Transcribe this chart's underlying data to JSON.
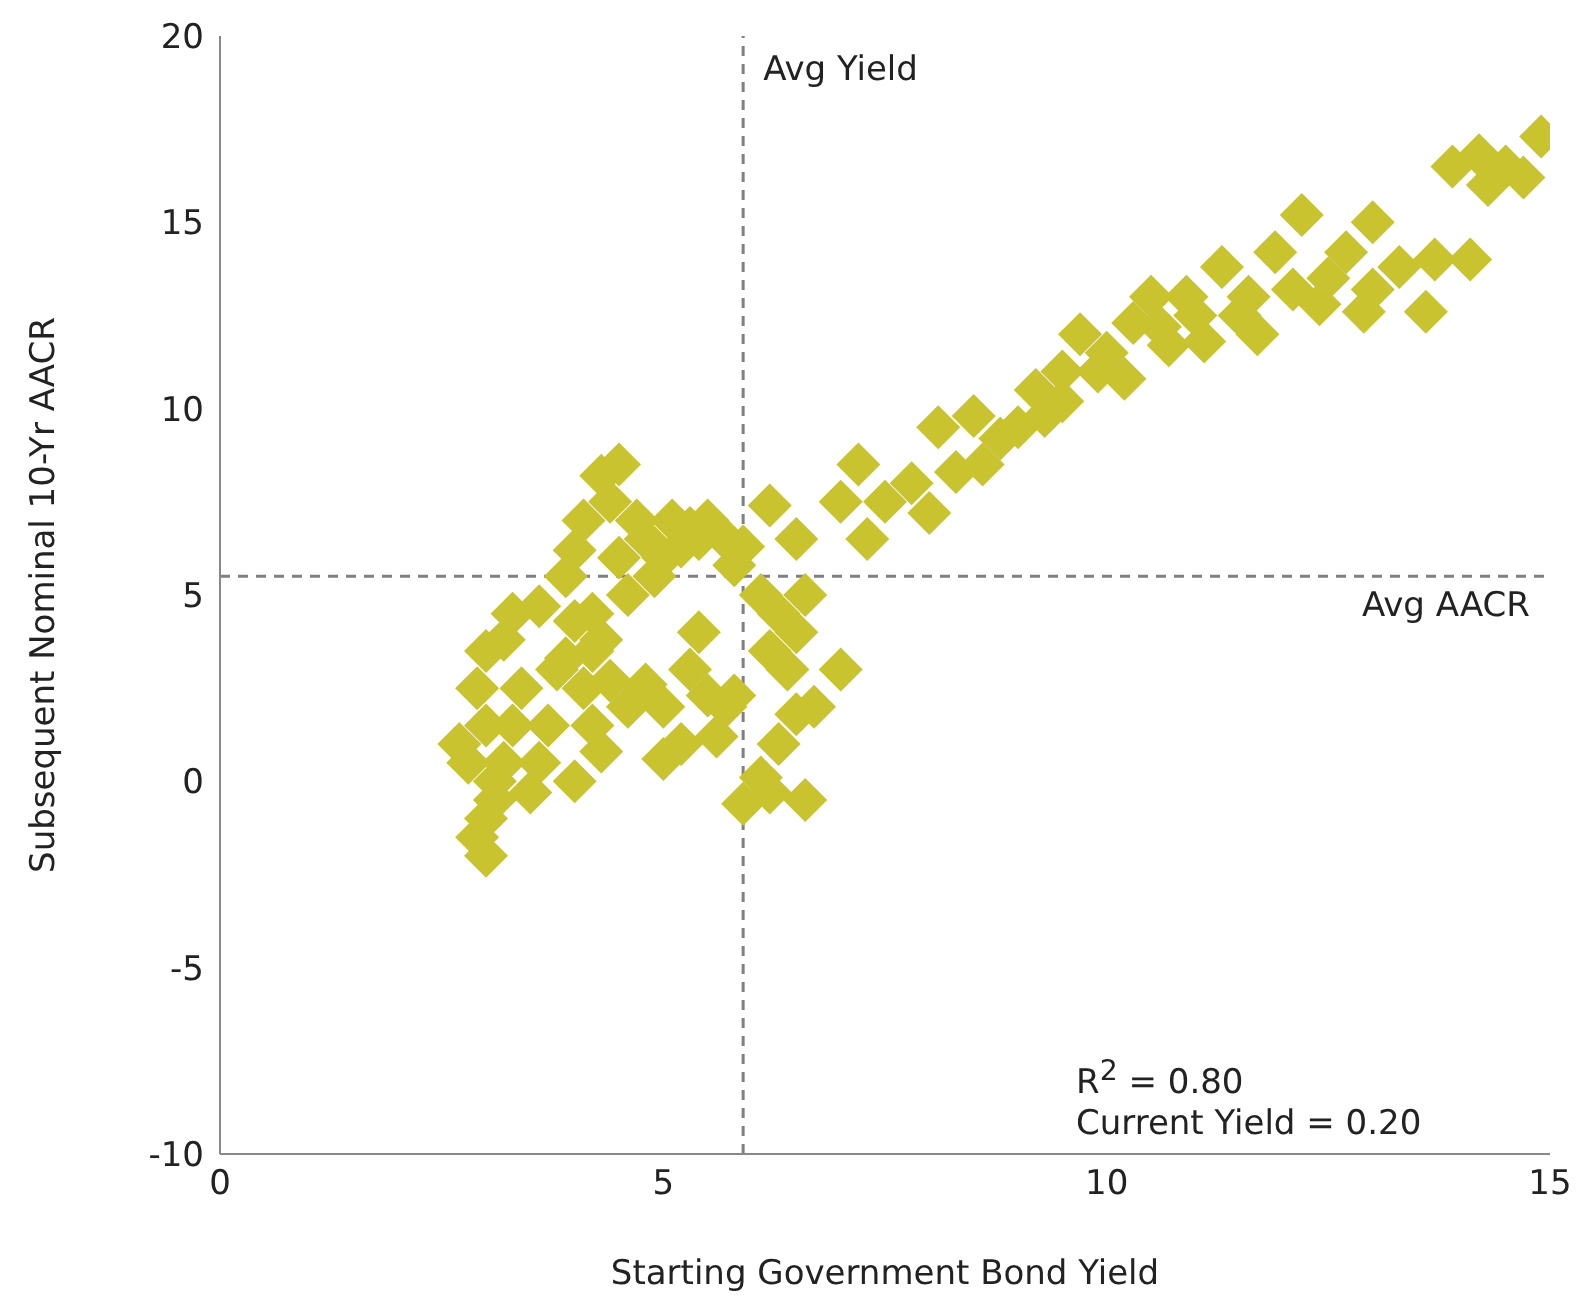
{
  "chart_data": {
    "type": "scatter",
    "xlabel": "Starting Government Bond Yield",
    "ylabel": "Subsequent Nominal 10-Yr AACR",
    "xlim": [
      0,
      15
    ],
    "xticks": [
      0,
      5,
      10,
      15
    ],
    "ylim": [
      -10,
      20
    ],
    "yticks": [
      -10,
      -5,
      0,
      5,
      10,
      15,
      20
    ],
    "grid": false,
    "marker": "diamond",
    "ref_lines": [
      {
        "axis": "x",
        "value": 5.9,
        "label": "Avg Yield",
        "line_style": "dashed",
        "color": "#808080"
      },
      {
        "axis": "y",
        "value": 5.5,
        "label": "Avg AACR",
        "line_style": "dashed",
        "color": "#808080"
      }
    ],
    "annotations": [
      "R$^{2}$ = 0.80",
      "Current Yield = 0.20"
    ],
    "series": [
      {
        "color": "#c9c32f",
        "x": [
          2.7,
          2.8,
          2.9,
          3.0,
          3.0,
          3.1,
          3.0,
          2.9,
          3.0,
          3.2,
          3.3,
          3.1,
          3.2,
          3.3,
          3.4,
          3.5,
          3.6,
          3.7,
          3.8,
          3.6,
          3.9,
          4.0,
          4.1,
          4.2,
          4.3,
          4.4,
          4.6,
          4.8,
          5.0,
          5.0,
          5.2,
          5.3,
          5.4,
          5.5,
          5.6,
          5.7,
          5.8,
          5.9,
          6.1,
          6.2,
          6.3,
          6.5,
          6.6,
          6.7,
          6.4,
          7.0,
          6.2,
          3.9,
          4.0,
          4.1,
          4.2,
          4.3,
          4.4,
          4.5,
          4.5,
          4.6,
          4.7,
          4.8,
          4.9,
          5.0,
          5.1,
          5.2,
          5.3,
          5.4,
          5.5,
          5.7,
          5.8,
          5.9,
          6.1,
          6.2,
          6.3,
          6.5,
          6.6,
          6.5,
          4.2,
          4.3,
          4.0,
          7.0,
          7.2,
          7.3,
          7.5,
          7.8,
          8.0,
          8.1,
          8.3,
          8.5,
          8.6,
          8.8,
          9.0,
          9.2,
          9.3,
          9.5,
          9.5,
          9.7,
          9.9,
          10.0,
          10.2,
          10.3,
          10.5,
          10.6,
          10.7,
          10.9,
          11.0,
          11.1,
          11.3,
          11.5,
          11.6,
          11.7,
          11.9,
          12.1,
          12.2,
          12.4,
          12.5,
          12.7,
          12.9,
          13.0,
          13.0,
          13.3,
          13.6,
          13.7,
          13.9,
          14.1,
          14.2,
          14.3,
          14.5,
          14.7,
          14.9
        ],
        "values": [
          1,
          0.5,
          -1.5,
          -2,
          -1,
          0,
          1.5,
          2.5,
          3.5,
          3.8,
          4.5,
          -0.5,
          0.5,
          1.5,
          2.5,
          -0.3,
          0.5,
          1.5,
          3.0,
          4.7,
          3.3,
          0,
          2.5,
          1.5,
          0.8,
          2.7,
          2.0,
          2.6,
          2.0,
          0.6,
          1.0,
          3.0,
          4.0,
          2.3,
          1.2,
          2.0,
          2.3,
          -0.6,
          0.1,
          -0.3,
          1.0,
          1.8,
          -0.5,
          2.0,
          3.0,
          3.0,
          3.5,
          5.5,
          6.2,
          7.0,
          4.5,
          8.2,
          7.5,
          8.5,
          6.0,
          5.0,
          7.0,
          6.5,
          5.5,
          6.0,
          7.0,
          6.3,
          6.8,
          6.5,
          7.0,
          6.5,
          5.8,
          6.3,
          5.0,
          7.4,
          4.5,
          6.5,
          5.0,
          4.0,
          3.5,
          3.8,
          4.3,
          7.5,
          8.5,
          6.5,
          7.5,
          8.0,
          7.2,
          9.5,
          8.3,
          9.8,
          8.5,
          9.2,
          9.5,
          10.5,
          9.8,
          11.0,
          10.2,
          12.0,
          11.0,
          11.5,
          10.8,
          12.3,
          13.0,
          12.2,
          11.7,
          13.0,
          12.5,
          11.8,
          13.8,
          12.5,
          13.0,
          12.0,
          14.2,
          13.2,
          15.2,
          12.8,
          13.5,
          14.2,
          12.6,
          15.0,
          13.2,
          13.8,
          12.6,
          14.0,
          16.5,
          14.0,
          16.8,
          16.0,
          16.5,
          16.2,
          17.3
        ]
      }
    ]
  }
}
